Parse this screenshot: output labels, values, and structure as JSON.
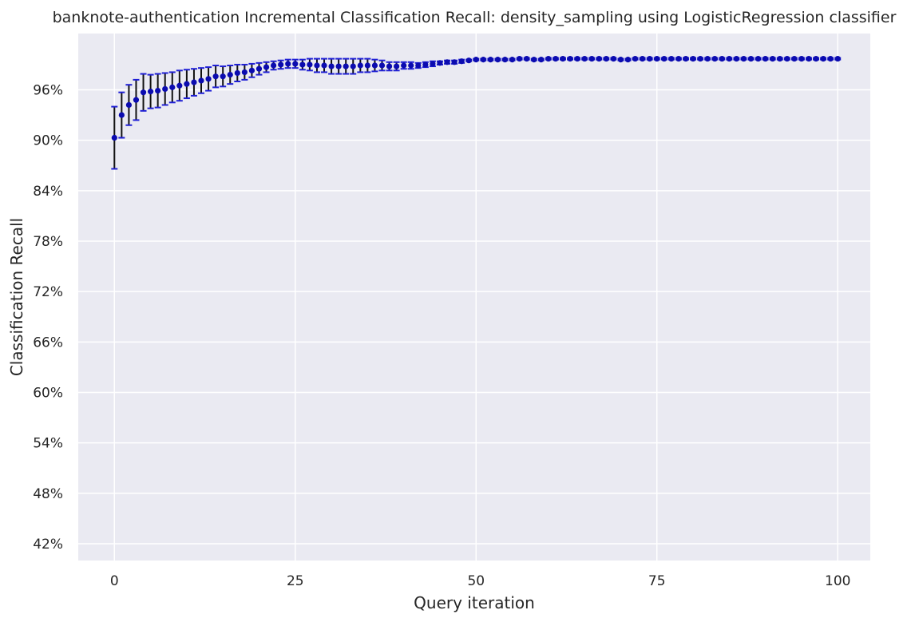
{
  "chart_data": {
    "type": "scatter",
    "title": "banknote-authentication Incremental Classification Recall: density_sampling using LogisticRegression classifier",
    "xlabel": "Query iteration",
    "ylabel": "Classification Recall",
    "xlim": [
      -5,
      104.5
    ],
    "ylim": [
      40.0,
      102.7
    ],
    "x_ticks": [
      0,
      25,
      50,
      75,
      100
    ],
    "x_tick_labels": [
      "0",
      "25",
      "50",
      "75",
      "100"
    ],
    "y_ticks": [
      42,
      48,
      54,
      60,
      66,
      72,
      78,
      84,
      90,
      96
    ],
    "y_tick_labels": [
      "42%",
      "48%",
      "54%",
      "60%",
      "66%",
      "72%",
      "78%",
      "84%",
      "90%",
      "96%"
    ],
    "grid": true,
    "background": "#eaeaf2",
    "grid_color": "#ffffff",
    "marker_color": "#0b0bb0",
    "errorbar_color": "#111111",
    "cap_color": "#1f1fd6",
    "series": [
      {
        "x": [
          0,
          1,
          2,
          3,
          4,
          5,
          6,
          7,
          8,
          9,
          10,
          11,
          12,
          13,
          14,
          15,
          16,
          17,
          18,
          19,
          20,
          21,
          22,
          23,
          24,
          25,
          26,
          27,
          28,
          29,
          30,
          31,
          32,
          33,
          34,
          35,
          36,
          37,
          38,
          39,
          40,
          41,
          42,
          43,
          44,
          45,
          46,
          47,
          48,
          49,
          50,
          51,
          52,
          53,
          54,
          55,
          56,
          57,
          58,
          59,
          60,
          61,
          62,
          63,
          64,
          65,
          66,
          67,
          68,
          69,
          70,
          71,
          72,
          73,
          74,
          75,
          76,
          77,
          78,
          79,
          80,
          81,
          82,
          83,
          84,
          85,
          86,
          87,
          88,
          89,
          90,
          91,
          92,
          93,
          94,
          95,
          96,
          97,
          98,
          99,
          100
        ],
        "y": [
          90.3,
          93.0,
          94.2,
          94.8,
          95.7,
          95.8,
          95.9,
          96.1,
          96.3,
          96.5,
          96.7,
          96.9,
          97.1,
          97.3,
          97.6,
          97.6,
          97.8,
          98.0,
          98.1,
          98.3,
          98.5,
          98.7,
          98.9,
          99.0,
          99.1,
          99.1,
          99.0,
          99.0,
          98.9,
          98.9,
          98.8,
          98.8,
          98.8,
          98.8,
          98.9,
          98.9,
          98.9,
          98.9,
          98.8,
          98.8,
          98.9,
          98.9,
          98.9,
          99.0,
          99.1,
          99.2,
          99.3,
          99.3,
          99.4,
          99.5,
          99.6,
          99.6,
          99.6,
          99.6,
          99.6,
          99.6,
          99.7,
          99.7,
          99.6,
          99.6,
          99.7,
          99.7,
          99.7,
          99.7,
          99.7,
          99.7,
          99.7,
          99.7,
          99.7,
          99.7,
          99.6,
          99.6,
          99.7,
          99.7,
          99.7,
          99.7,
          99.7,
          99.7,
          99.7,
          99.7,
          99.7,
          99.7,
          99.7,
          99.7,
          99.7,
          99.7,
          99.7,
          99.7,
          99.7,
          99.7,
          99.7,
          99.7,
          99.7,
          99.7,
          99.7,
          99.7,
          99.7,
          99.7,
          99.7,
          99.7,
          99.7
        ],
        "yerr": [
          3.7,
          2.7,
          2.4,
          2.4,
          2.2,
          2.0,
          2.0,
          1.9,
          1.8,
          1.8,
          1.7,
          1.6,
          1.5,
          1.4,
          1.3,
          1.2,
          1.1,
          1.0,
          0.9,
          0.8,
          0.7,
          0.6,
          0.5,
          0.5,
          0.5,
          0.5,
          0.6,
          0.7,
          0.8,
          0.8,
          0.9,
          0.9,
          0.9,
          0.9,
          0.8,
          0.8,
          0.7,
          0.6,
          0.5,
          0.5,
          0.4,
          0.4,
          0.3,
          0.3,
          0.3,
          0.2,
          0.2,
          0.2,
          0.2,
          0.1,
          0.1,
          0.1,
          0.1,
          0.1,
          0.1,
          0.1,
          0.1,
          0.1,
          0.1,
          0.1,
          0.1,
          0.1,
          0.1,
          0.1,
          0.1,
          0.1,
          0.1,
          0.1,
          0.1,
          0.1,
          0.1,
          0.1,
          0.1,
          0.1,
          0.1,
          0.1,
          0.1,
          0.1,
          0.1,
          0.1,
          0.1,
          0.1,
          0.1,
          0.1,
          0.1,
          0.1,
          0.1,
          0.1,
          0.1,
          0.1,
          0.1,
          0.1,
          0.1,
          0.1,
          0.1,
          0.1,
          0.1,
          0.1,
          0.1,
          0.1,
          0.1
        ]
      }
    ]
  }
}
